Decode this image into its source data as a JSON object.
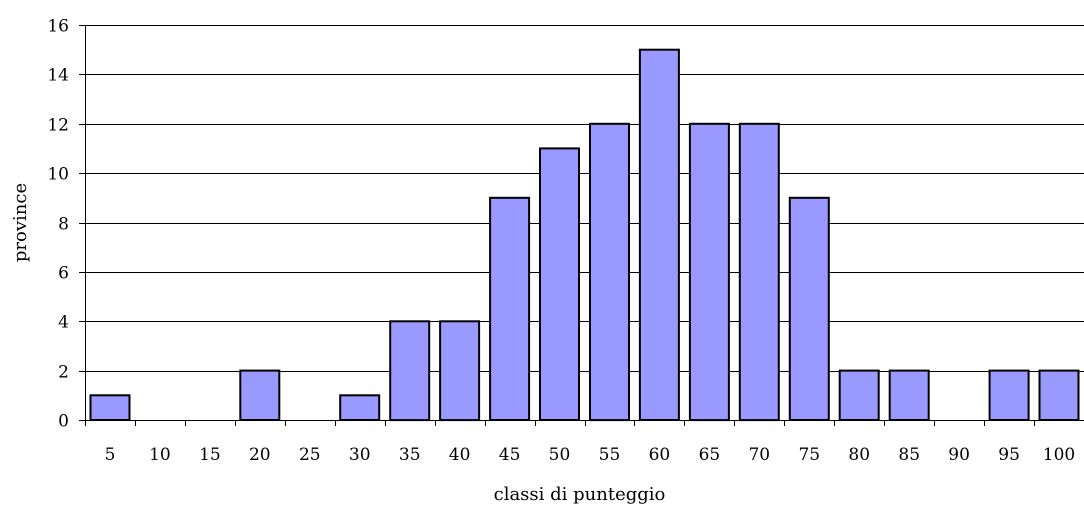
{
  "chart_data": {
    "type": "bar",
    "title": "",
    "xlabel": "classi di punteggio",
    "ylabel": "province",
    "categories": [
      "5",
      "10",
      "15",
      "20",
      "25",
      "30",
      "35",
      "40",
      "45",
      "50",
      "55",
      "60",
      "65",
      "70",
      "75",
      "80",
      "85",
      "90",
      "95",
      "100"
    ],
    "values": [
      1,
      0,
      0,
      2,
      0,
      1,
      4,
      4,
      9,
      11,
      12,
      15,
      12,
      12,
      9,
      2,
      2,
      0,
      2,
      2
    ],
    "ylim": [
      0,
      16
    ],
    "yticks": [
      0,
      2,
      4,
      6,
      8,
      10,
      12,
      14,
      16
    ],
    "grid": true,
    "bar_color": "#9999ff"
  }
}
